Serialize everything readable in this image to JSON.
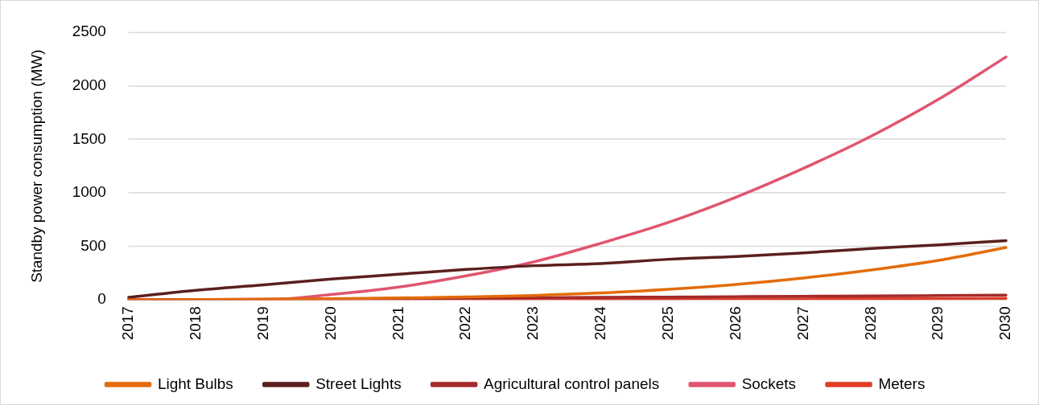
{
  "chart_data": {
    "type": "line",
    "ylabel": "Standby power consumption (MW)",
    "categories": [
      "2017",
      "2018",
      "2019",
      "2020",
      "2021",
      "2022",
      "2023",
      "2024",
      "2025",
      "2026",
      "2027",
      "2028",
      "2029",
      "2030"
    ],
    "ylim": [
      0,
      2500
    ],
    "yticks": [
      0,
      500,
      1000,
      1500,
      2000,
      2500
    ],
    "grid": "y",
    "legend": "bottom",
    "marker": "none",
    "line_style": "solid",
    "series": [
      {
        "name": "Light Bulbs",
        "color": "#e36c0a",
        "values": [
          0,
          3,
          7,
          12,
          18,
          28,
          42,
          65,
          100,
          145,
          205,
          280,
          370,
          490
        ]
      },
      {
        "name": "Street Lights",
        "color": "#5c1f1f",
        "values": [
          24,
          90,
          140,
          195,
          240,
          285,
          320,
          340,
          380,
          405,
          440,
          480,
          515,
          554
        ]
      },
      {
        "name": "Agricultural control panels",
        "color": "#a52a2a",
        "values": [
          0,
          3,
          6,
          10,
          13,
          17,
          20,
          24,
          27,
          31,
          34,
          38,
          41,
          45
        ]
      },
      {
        "name": "Sockets",
        "color": "#e05570",
        "values": [
          0,
          0,
          0,
          50,
          120,
          225,
          355,
          530,
          725,
          960,
          1230,
          1530,
          1875,
          2270
        ]
      },
      {
        "name": "Meters",
        "color": "#e03c28",
        "values": [
          0,
          1,
          2,
          3,
          4,
          5,
          6,
          7,
          8,
          9,
          10,
          12,
          13,
          15
        ]
      }
    ]
  }
}
